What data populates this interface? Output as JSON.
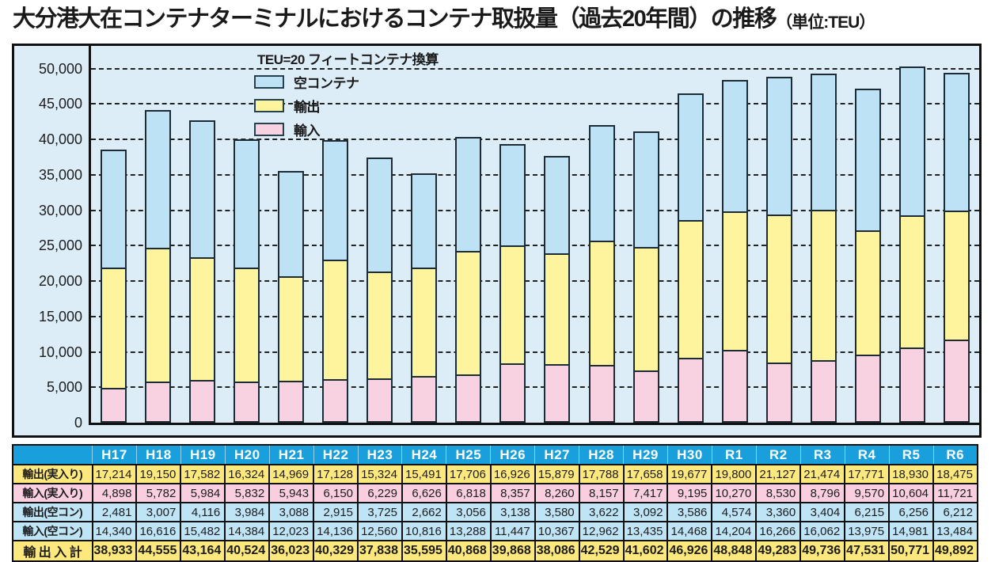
{
  "title": {
    "main": "大分港大在コンテナターミナルにおけるコンテナ取扱量（過去20年間）の推移",
    "unit": "（単位:TEU）"
  },
  "chart_data": {
    "type": "bar",
    "stacked": true,
    "note": "TEU=20 フィートコンテナ換算",
    "categories": [
      "H17",
      "H18",
      "H19",
      "H20",
      "H21",
      "H22",
      "H23",
      "H24",
      "H25",
      "H26",
      "H27",
      "H28",
      "H29",
      "H30",
      "R1",
      "R2",
      "R3",
      "R4",
      "R5",
      "R6"
    ],
    "series": [
      {
        "name": "輸入",
        "color": "#f9d2e1",
        "values": [
          4898,
          5782,
          5984,
          5832,
          5943,
          6150,
          6229,
          6626,
          6818,
          8357,
          8260,
          8157,
          7417,
          9195,
          10270,
          8530,
          8796,
          9570,
          10604,
          11721
        ]
      },
      {
        "name": "輸出",
        "color": "#fdf49d",
        "values": [
          17214,
          19150,
          17582,
          16324,
          14969,
          17128,
          15324,
          15491,
          17706,
          16926,
          15879,
          17788,
          17658,
          19677,
          19800,
          21127,
          21474,
          17771,
          18930,
          18475
        ]
      },
      {
        "name": "空コンテナ",
        "color": "#bde2f5",
        "values": [
          16821,
          19623,
          19598,
          18368,
          15111,
          17051,
          16285,
          13478,
          16344,
          14585,
          13947,
          16584,
          16527,
          18054,
          18778,
          19626,
          19466,
          20190,
          21237,
          19696
        ]
      }
    ],
    "legend": [
      {
        "label": "空コンテナ",
        "color": "#bde2f5"
      },
      {
        "label": "輸出",
        "color": "#fdf49d"
      },
      {
        "label": "輸入",
        "color": "#f9d2e1"
      }
    ],
    "y_ticks": [
      {
        "value": 0,
        "label": "0"
      },
      {
        "value": 5000,
        "label": "5,000"
      },
      {
        "value": 10000,
        "label": "10,000"
      },
      {
        "value": 15000,
        "label": "15,000"
      },
      {
        "value": 20000,
        "label": "20,000"
      },
      {
        "value": 25000,
        "label": "25,000"
      },
      {
        "value": 30000,
        "label": "30,000"
      },
      {
        "value": 35000,
        "label": "35,000"
      },
      {
        "value": 40000,
        "label": "40,000"
      },
      {
        "value": 45000,
        "label": "45,000"
      },
      {
        "value": 50000,
        "label": "50,000"
      }
    ],
    "ylim": [
      0,
      53200
    ],
    "grid": true,
    "legend_position": "top-left-inside"
  },
  "table": {
    "corner_label": "",
    "columns": [
      "H17",
      "H18",
      "H19",
      "H20",
      "H21",
      "H22",
      "H23",
      "H24",
      "H25",
      "H26",
      "H27",
      "H28",
      "H29",
      "H30",
      "R1",
      "R2",
      "R3",
      "R4",
      "R5",
      "R6"
    ],
    "rows": [
      {
        "label": "輸出(実入り)",
        "bg": "yellow",
        "bold": false,
        "values": [
          "17,214",
          "19,150",
          "17,582",
          "16,324",
          "14,969",
          "17,128",
          "15,324",
          "15,491",
          "17,706",
          "16,926",
          "15,879",
          "17,788",
          "17,658",
          "19,677",
          "19,800",
          "21,127",
          "21,474",
          "17,771",
          "18,930",
          "18,475"
        ]
      },
      {
        "label": "輸入(実入り)",
        "bg": "pink",
        "bold": false,
        "values": [
          "4,898",
          "5,782",
          "5,984",
          "5,832",
          "5,943",
          "6,150",
          "6,229",
          "6,626",
          "6,818",
          "8,357",
          "8,260",
          "8,157",
          "7,417",
          "9,195",
          "10,270",
          "8,530",
          "8,796",
          "9,570",
          "10,604",
          "11,721"
        ]
      },
      {
        "label": "輸出(空コン)",
        "bg": "blue",
        "bold": false,
        "values": [
          "2,481",
          "3,007",
          "4,116",
          "3,984",
          "3,088",
          "2,915",
          "3,725",
          "2,662",
          "3,056",
          "3,138",
          "3,580",
          "3,622",
          "3,092",
          "3,586",
          "4,574",
          "3,360",
          "3,404",
          "6,215",
          "6,256",
          "6,212"
        ]
      },
      {
        "label": "輸入(空コン)",
        "bg": "blue",
        "bold": false,
        "values": [
          "14,340",
          "16,616",
          "15,482",
          "14,384",
          "12,023",
          "14,136",
          "12,560",
          "10,816",
          "13,288",
          "11,447",
          "10,367",
          "12,962",
          "13,435",
          "14,468",
          "14,204",
          "16,266",
          "16,062",
          "13,975",
          "14,981",
          "13,484"
        ]
      },
      {
        "label": "輸 出 入 計",
        "bg": "yellow",
        "bold": true,
        "values": [
          "38,933",
          "44,555",
          "43,164",
          "40,524",
          "36,023",
          "40,329",
          "37,838",
          "35,595",
          "40,868",
          "39,868",
          "38,086",
          "42,529",
          "41,602",
          "46,926",
          "48,848",
          "49,283",
          "49,736",
          "47,531",
          "50,771",
          "49,892"
        ]
      }
    ]
  },
  "colors": {
    "chart_background": "#dcedf8",
    "bar_border": "#1d2b34",
    "table_header_bg": "#19a0dc",
    "table_yellow": "#fce87d",
    "table_pink": "#f9cfe0",
    "table_blue": "#bfe4f6",
    "frame_border": "#111111"
  }
}
